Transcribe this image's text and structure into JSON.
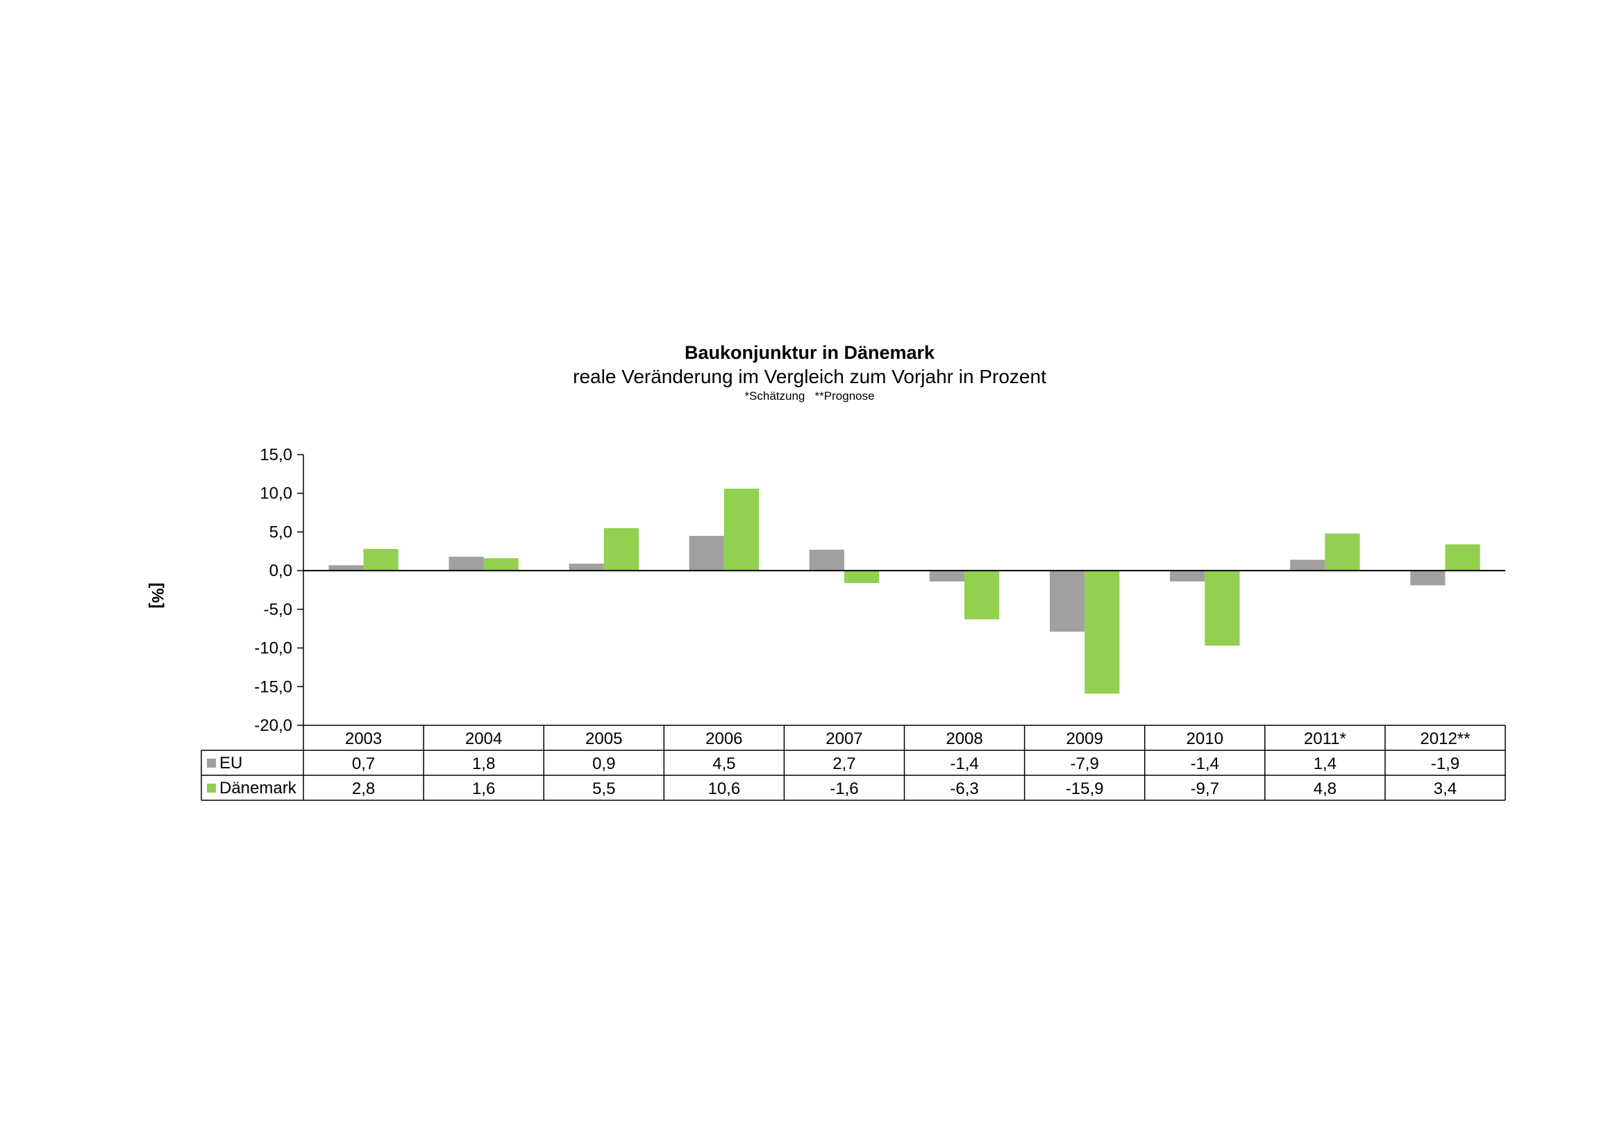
{
  "chart_data": {
    "type": "bar",
    "title": "Baukonjunktur in Dänemark",
    "subtitle": "reale Veränderung im Vergleich zum Vorjahr in Prozent",
    "note": "*Schätzung   **Prognose",
    "ylabel": "[%]",
    "xlabel": "",
    "ylim": [
      -20,
      15
    ],
    "yticks": [
      "15,0",
      "10,0",
      "5,0",
      "0,0",
      "-5,0",
      "-10,0",
      "-15,0",
      "-20,0"
    ],
    "ytick_values": [
      15,
      10,
      5,
      0,
      -5,
      -10,
      -15,
      -20
    ],
    "grid": false,
    "legend": "data-table",
    "categories": [
      "2003",
      "2004",
      "2005",
      "2006",
      "2007",
      "2008",
      "2009",
      "2010",
      "2011*",
      "2012**"
    ],
    "series": [
      {
        "name": "EU",
        "color": "#a0a0a0",
        "values": [
          0.7,
          1.8,
          0.9,
          4.5,
          2.7,
          -1.4,
          -7.9,
          -1.4,
          1.4,
          -1.9
        ],
        "labels": [
          "0,7",
          "1,8",
          "0,9",
          "4,5",
          "2,7",
          "-1,4",
          "-7,9",
          "-1,4",
          "1,4",
          "-1,9"
        ]
      },
      {
        "name": "Dänemark",
        "color": "#92d050",
        "values": [
          2.8,
          1.6,
          5.5,
          10.6,
          -1.6,
          -6.3,
          -15.9,
          -9.7,
          4.8,
          3.4
        ],
        "labels": [
          "2,8",
          "1,6",
          "5,5",
          "10,6",
          "-1,6",
          "-6,3",
          "-15,9",
          "-9,7",
          "4,8",
          "3,4"
        ]
      }
    ]
  }
}
